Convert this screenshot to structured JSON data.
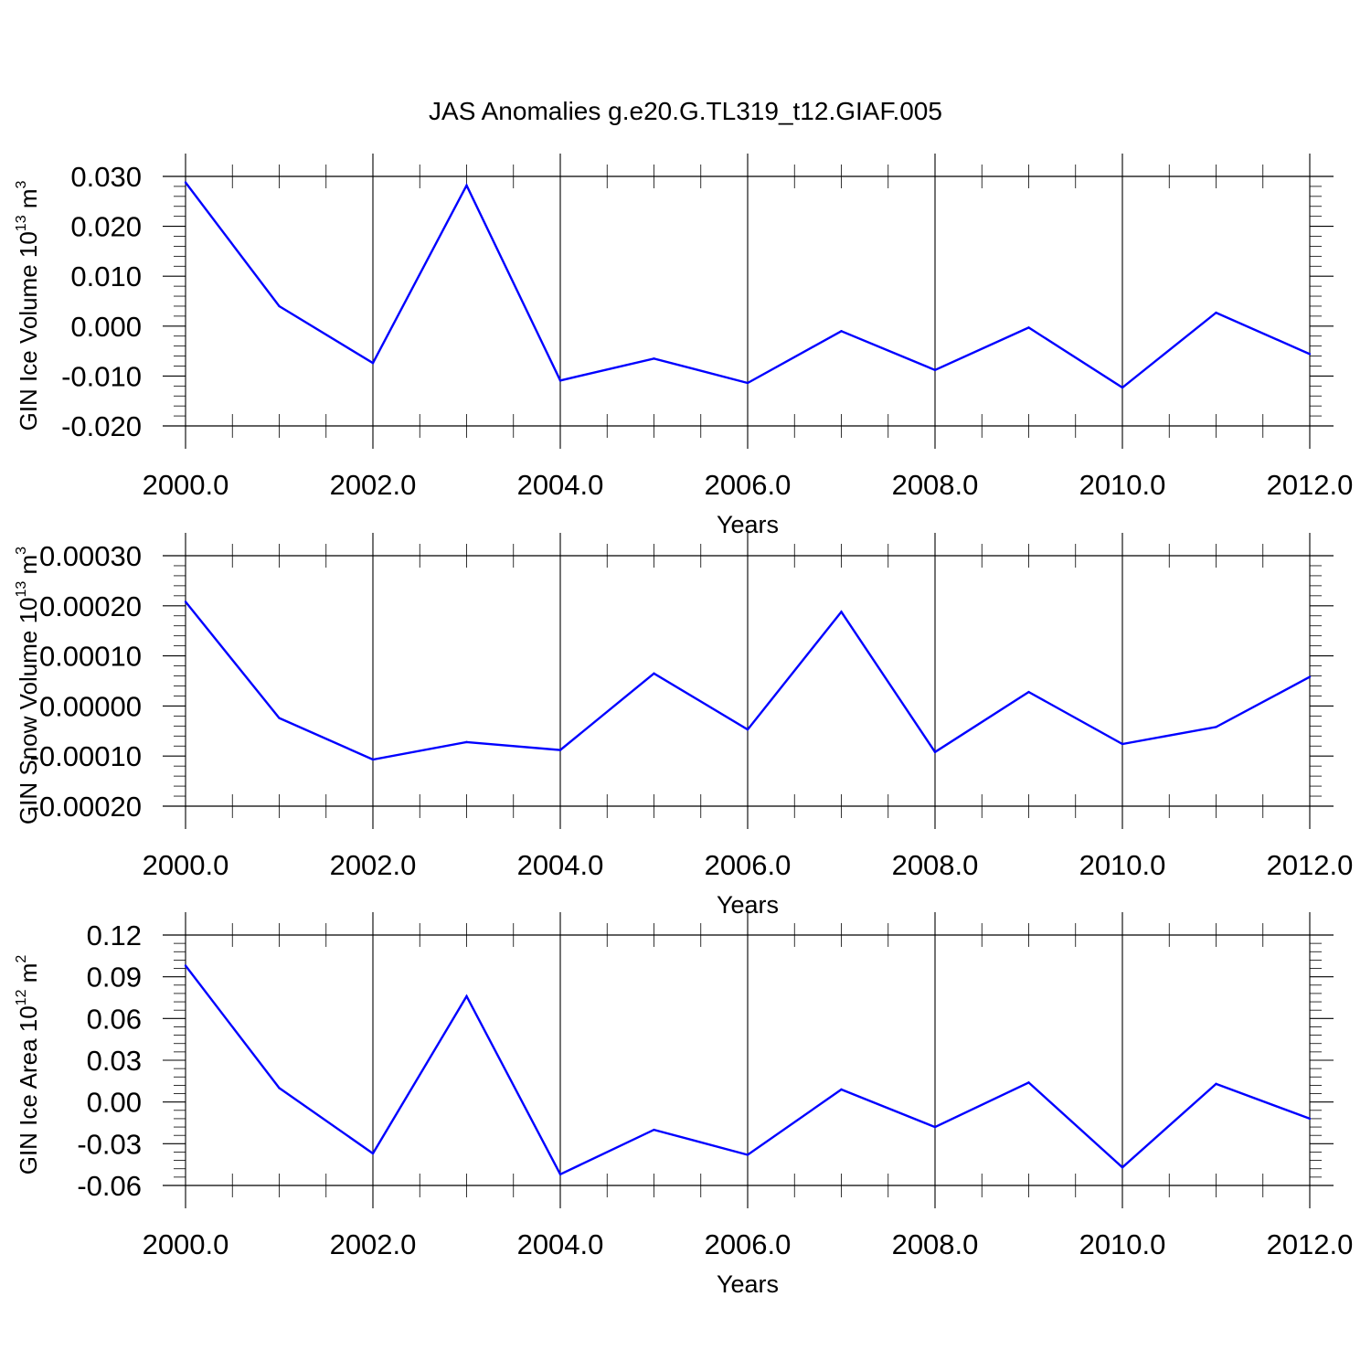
{
  "title": "JAS Anomalies g.e20.G.TL319_t12.GIAF.005",
  "colors": {
    "series": "#0000ff",
    "axes": "#000000",
    "grid": "#888888"
  },
  "chart_data": [
    {
      "type": "line",
      "ylabel": "GIN Ice Volume 10",
      "ylabel_exp": "13",
      "ylabel_unit": " m",
      "ylabel_unit_exp": "3",
      "xlabel": "Years",
      "x": [
        2000,
        2001,
        2002,
        2003,
        2004,
        2005,
        2006,
        2007,
        2008,
        2009,
        2010,
        2011,
        2012
      ],
      "values": [
        0.0288,
        0.004,
        -0.0074,
        0.0282,
        -0.0109,
        -0.0065,
        -0.0114,
        -0.001,
        -0.0088,
        -0.0003,
        -0.0123,
        0.0027,
        -0.0056
      ],
      "xlim": [
        2000,
        2012
      ],
      "ylim": [
        -0.02,
        0.03
      ],
      "xticks": [
        "2000.0",
        "2002.0",
        "2004.0",
        "2006.0",
        "2008.0",
        "2010.0",
        "2012.0"
      ],
      "yticks": [
        "0.030",
        "0.020",
        "0.010",
        "0.000",
        "-0.010",
        "-0.020"
      ],
      "grid": "vertical dashed at labeled x ticks"
    },
    {
      "type": "line",
      "ylabel": "GIN Snow Volume 10",
      "ylabel_exp": "13",
      "ylabel_unit": " m",
      "ylabel_unit_exp": "3",
      "xlabel": "Years",
      "x": [
        2000,
        2001,
        2002,
        2003,
        2004,
        2005,
        2006,
        2007,
        2008,
        2009,
        2010,
        2011,
        2012
      ],
      "values": [
        0.000208,
        -2.4e-05,
        -0.000107,
        -7.2e-05,
        -8.8e-05,
        6.5e-05,
        -4.7e-05,
        0.000188,
        -9.2e-05,
        2.8e-05,
        -7.6e-05,
        -4.2e-05,
        5.8e-05
      ],
      "xlim": [
        2000,
        2012
      ],
      "ylim": [
        -0.0002,
        0.0003
      ],
      "xticks": [
        "2000.0",
        "2002.0",
        "2004.0",
        "2006.0",
        "2008.0",
        "2010.0",
        "2012.0"
      ],
      "yticks": [
        "0.00030",
        "0.00020",
        "0.00010",
        "0.00000",
        "-0.00010",
        "-0.00020"
      ],
      "grid": "vertical dashed at labeled x ticks"
    },
    {
      "type": "line",
      "ylabel": "GIN Ice Area 10",
      "ylabel_exp": "12",
      "ylabel_unit": " m",
      "ylabel_unit_exp": "2",
      "xlabel": "Years",
      "x": [
        2000,
        2001,
        2002,
        2003,
        2004,
        2005,
        2006,
        2007,
        2008,
        2009,
        2010,
        2011,
        2012
      ],
      "values": [
        0.098,
        0.01,
        -0.037,
        0.076,
        -0.052,
        -0.02,
        -0.038,
        0.009,
        -0.018,
        0.014,
        -0.047,
        0.013,
        -0.012
      ],
      "xlim": [
        2000,
        2012
      ],
      "ylim": [
        -0.06,
        0.12
      ],
      "xticks": [
        "2000.0",
        "2002.0",
        "2004.0",
        "2006.0",
        "2008.0",
        "2010.0",
        "2012.0"
      ],
      "yticks": [
        "0.12",
        "0.09",
        "0.06",
        "0.03",
        "0.00",
        "-0.03",
        "-0.06"
      ],
      "grid": "vertical dashed at labeled x ticks"
    }
  ]
}
